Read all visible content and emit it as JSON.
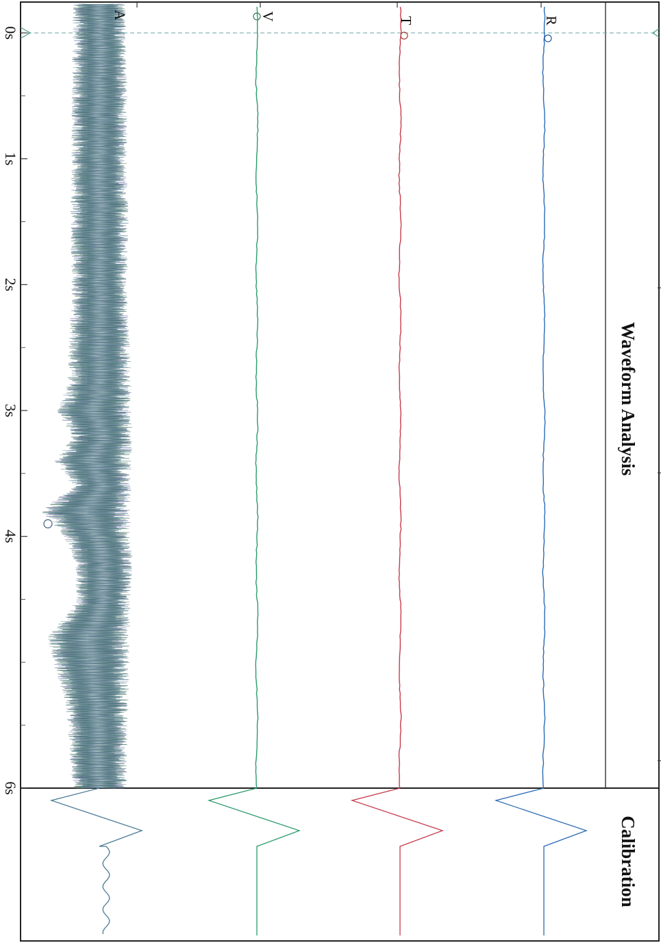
{
  "chart_data": {
    "type": "line",
    "orientation": "rotated-90-clockwise",
    "title": "Waveform Analysis",
    "calibration_title": "Calibration",
    "x": {
      "unit": "s",
      "range": [
        0,
        6
      ],
      "ticks": [
        {
          "value": 0,
          "label": "0s"
        },
        {
          "value": 1,
          "label": "1s"
        },
        {
          "value": 2,
          "label": "2s"
        },
        {
          "value": 3,
          "label": "3s"
        },
        {
          "value": 4,
          "label": "4s"
        },
        {
          "value": 6,
          "label": "6s"
        }
      ],
      "minor_ticks": [
        0.5,
        1.5,
        2.5,
        3.5,
        4.5,
        5,
        5.5
      ]
    },
    "series": [
      {
        "name": "A",
        "color": "#4a7a96",
        "kind": "vibration",
        "envelope": [
          [
            0.0,
            0.5
          ],
          [
            0.5,
            0.53
          ],
          [
            1.0,
            0.52
          ],
          [
            1.5,
            0.55
          ],
          [
            2.0,
            0.52
          ],
          [
            2.5,
            0.58
          ],
          [
            2.8,
            0.6
          ],
          [
            3.0,
            0.7
          ],
          [
            3.2,
            0.58
          ],
          [
            3.4,
            0.72
          ],
          [
            3.6,
            0.55
          ],
          [
            3.8,
            0.85
          ],
          [
            4.0,
            0.62
          ],
          [
            4.2,
            0.55
          ],
          [
            4.5,
            0.5
          ],
          [
            4.8,
            0.78
          ],
          [
            5.0,
            0.72
          ],
          [
            5.3,
            0.6
          ],
          [
            5.6,
            0.55
          ],
          [
            6.0,
            0.52
          ]
        ],
        "offsets": [
          [
            0.0,
            0.0
          ],
          [
            1.0,
            0.0
          ],
          [
            2.0,
            0.0
          ],
          [
            2.8,
            0.0
          ],
          [
            3.0,
            0.1
          ],
          [
            3.2,
            -0.05
          ],
          [
            3.4,
            0.12
          ],
          [
            3.6,
            -0.05
          ],
          [
            3.8,
            0.25
          ],
          [
            4.0,
            0.05
          ],
          [
            4.2,
            -0.08
          ],
          [
            4.5,
            -0.08
          ],
          [
            4.8,
            0.2
          ],
          [
            5.0,
            0.15
          ],
          [
            5.3,
            0.05
          ],
          [
            6.0,
            0.0
          ]
        ]
      },
      {
        "name": "V",
        "color": "#2a9a6a",
        "kind": "trace"
      },
      {
        "name": "T",
        "color": "#c63a4a",
        "kind": "trace"
      },
      {
        "name": "R",
        "color": "#2a6ab4",
        "kind": "trace"
      }
    ],
    "trigger_time": 0,
    "marker_time": 3.9,
    "grid": false,
    "legend": "none"
  }
}
